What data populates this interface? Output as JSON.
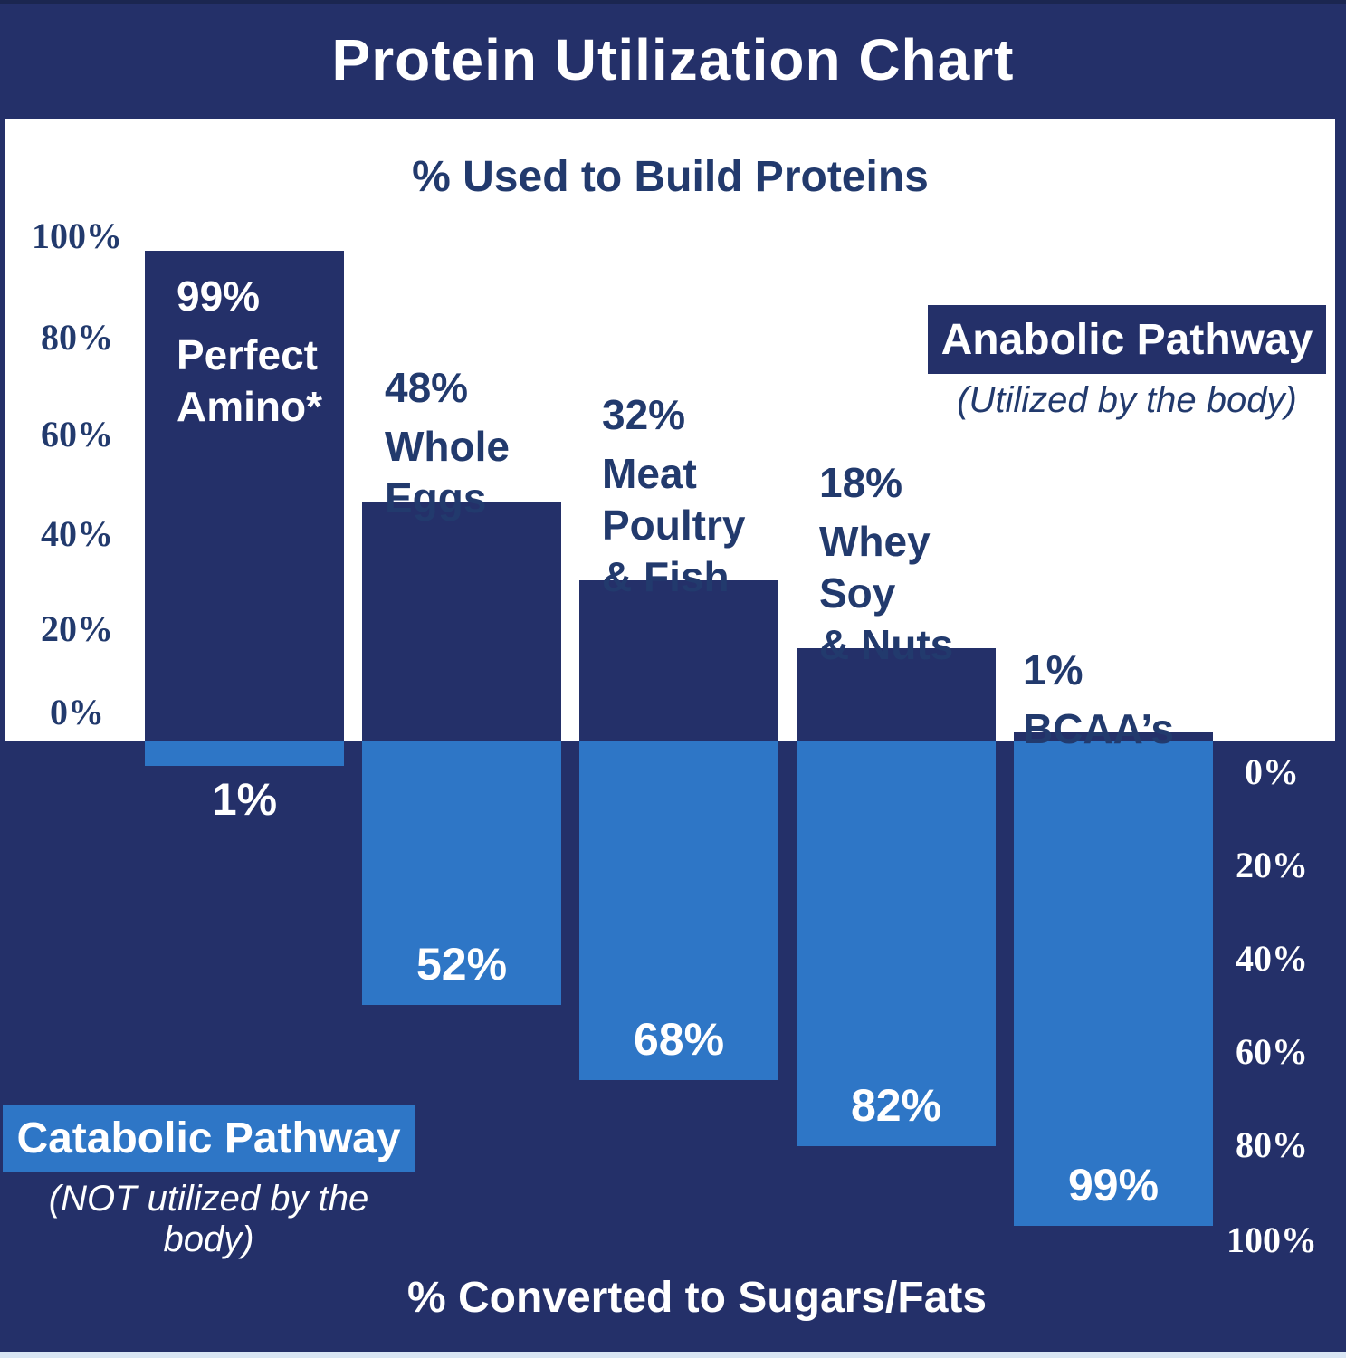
{
  "title_bar": {
    "title": "Protein Utilization Chart"
  },
  "upper_section": {
    "subtitle": "% Used to Build Proteins"
  },
  "lower_section": {
    "title": "% Converted to Sugars/Fats"
  },
  "legends": {
    "anabolic": {
      "label": "Anabolic Pathway",
      "caption": "(Utilized by the body)"
    },
    "catabolic": {
      "label": "Catabolic Pathway",
      "caption": "(NOT utilized by the body)"
    }
  },
  "colors": {
    "navy": "#243069",
    "light_blue": "#2e76c6",
    "text_navy": "#223a6d",
    "panel_white": "#ffffff",
    "top_edge": "#1b2650",
    "bottom_strip": "#d9e6f4"
  },
  "chart_data": {
    "type": "bar",
    "title": "Protein Utilization Chart",
    "top_axis": {
      "label": "% Used to Build Proteins",
      "ticks": [
        "100%",
        "80%",
        "60%",
        "40%",
        "20%",
        "0%"
      ],
      "range": [
        0,
        100
      ],
      "side": "left"
    },
    "bottom_axis": {
      "label": "% Converted to Sugars/Fats",
      "ticks": [
        "0%",
        "20%",
        "40%",
        "60%",
        "80%",
        "100%"
      ],
      "range": [
        0,
        100
      ],
      "side": "right"
    },
    "categories": [
      "Perfect Amino*",
      "Whole Eggs",
      "Meat Poultry & Fish",
      "Whey Soy & Nuts",
      "BCAA’s"
    ],
    "series": [
      {
        "name": "Anabolic Pathway (Utilized by the body)",
        "color": "#243069",
        "values": [
          99,
          48,
          32,
          18,
          1
        ]
      },
      {
        "name": "Catabolic Pathway (NOT utilized by the body)",
        "color": "#2e76c6",
        "values": [
          1,
          52,
          68,
          82,
          99
        ]
      }
    ],
    "grid": false,
    "bars": [
      {
        "slug": "perfect-amino",
        "label_lines": [
          "Perfect",
          "Amino*"
        ],
        "anabolic_label": "99%",
        "catabolic_label": "1%",
        "anabolic_pct": 99,
        "catabolic_pct": 1,
        "label_placement": "inside-bar"
      },
      {
        "slug": "whole-eggs",
        "label_lines": [
          "Whole",
          "Eggs"
        ],
        "anabolic_label": "48%",
        "catabolic_label": "52%",
        "anabolic_pct": 48,
        "catabolic_pct": 52,
        "label_placement": "above-bar"
      },
      {
        "slug": "meat-poultry-fish",
        "label_lines": [
          "Meat",
          "Poultry",
          "& Fish"
        ],
        "anabolic_label": "32%",
        "catabolic_label": "68%",
        "anabolic_pct": 32,
        "catabolic_pct": 68,
        "label_placement": "above-bar"
      },
      {
        "slug": "whey-soy-nuts",
        "label_lines": [
          "Whey",
          "Soy",
          "& Nuts"
        ],
        "anabolic_label": "18%",
        "catabolic_label": "82%",
        "anabolic_pct": 18,
        "catabolic_pct": 82,
        "label_placement": "above-bar"
      },
      {
        "slug": "bcaas",
        "label_lines": [
          "BCAA’s"
        ],
        "anabolic_label": "1%",
        "catabolic_label": "99%",
        "anabolic_pct": 1,
        "catabolic_pct": 99,
        "label_placement": "above-bar"
      }
    ]
  }
}
